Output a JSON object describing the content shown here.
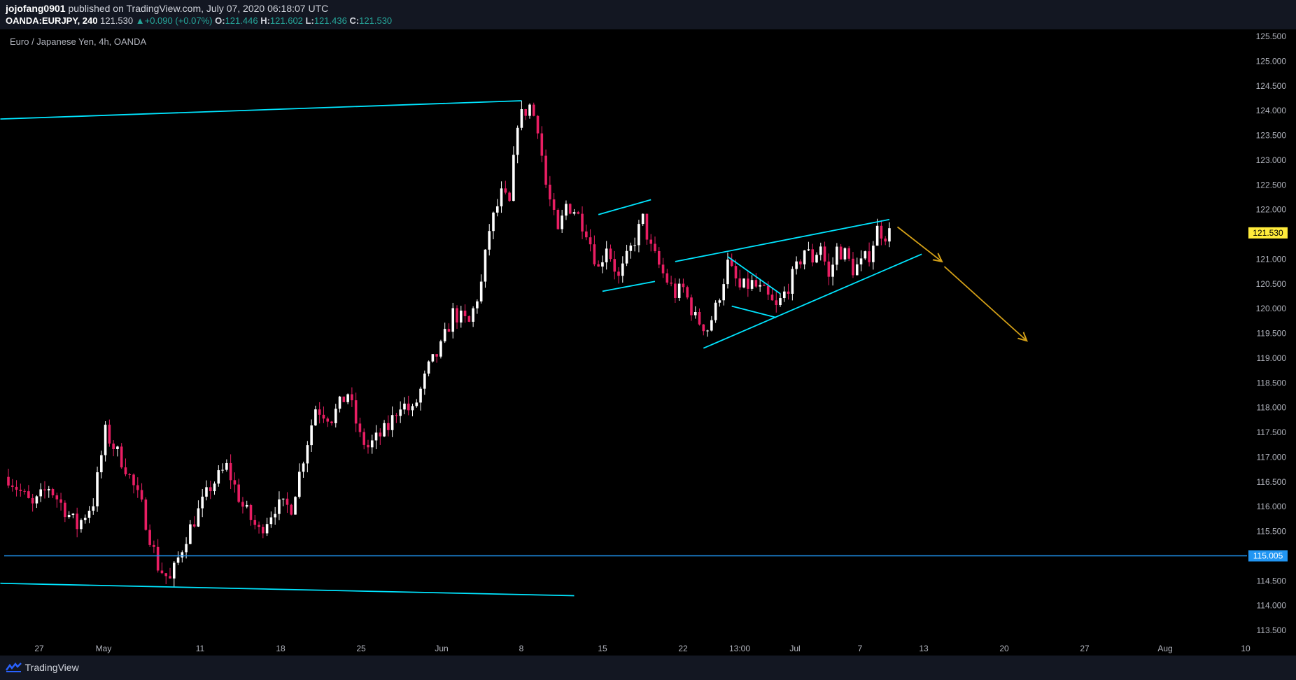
{
  "header": {
    "user": "jojofang0901",
    "published_text": "published on TradingView.com, July 07, 2020 06:18:07 UTC",
    "symbol": "OANDA:EURJPY, 240",
    "last": "121.530",
    "change": "+0.090 (+0.07%)",
    "o_label": "O:",
    "o_value": "121.446",
    "h_label": "H:",
    "h_value": "121.602",
    "l_label": "L:",
    "l_value": "121.436",
    "c_label": "C:",
    "c_value": "121.530"
  },
  "footer": {
    "brand": "TradingView"
  },
  "colors": {
    "background": "#000000",
    "up_candle": "#ffffff",
    "down_candle": "#e91e63",
    "trendline": "#00e5ff",
    "support_line": "#2196f3",
    "arrow": "#d4a017",
    "price_label_bg": "#ffeb3b",
    "support_label_bg": "#2196f3"
  },
  "chart_data": {
    "type": "candlestick",
    "title": "Euro / Japanese Yen, 4h, OANDA",
    "ylim": [
      113.5,
      125.6
    ],
    "y_ticks": [
      "125.500",
      "125.000",
      "124.500",
      "124.000",
      "123.500",
      "123.000",
      "122.500",
      "122.000",
      "121.500",
      "121.000",
      "120.500",
      "120.000",
      "119.500",
      "119.000",
      "118.500",
      "118.000",
      "117.500",
      "117.000",
      "116.500",
      "116.000",
      "115.500",
      "115.000",
      "114.500",
      "114.000",
      "113.500"
    ],
    "x_ticks": [
      "27",
      "May",
      "11",
      "18",
      "25",
      "Jun",
      "8",
      "15",
      "22",
      "13:00",
      "Jul",
      "7",
      "13",
      "20",
      "27",
      "Aug",
      "10"
    ],
    "current_price": "121.530",
    "support_price": "115.005",
    "price_path": [
      {
        "x": 0.0,
        "y": 116.6
      },
      {
        "x": 3.0,
        "y": 116.0
      },
      {
        "x": 5.0,
        "y": 116.4
      },
      {
        "x": 8.5,
        "y": 115.6
      },
      {
        "x": 10.5,
        "y": 116.1
      },
      {
        "x": 12.0,
        "y": 117.5
      },
      {
        "x": 14.5,
        "y": 116.8
      },
      {
        "x": 16.5,
        "y": 116.0
      },
      {
        "x": 18.5,
        "y": 114.8
      },
      {
        "x": 20.0,
        "y": 114.5
      },
      {
        "x": 22.0,
        "y": 115.4
      },
      {
        "x": 25.0,
        "y": 116.4
      },
      {
        "x": 27.0,
        "y": 116.8
      },
      {
        "x": 29.0,
        "y": 116.0
      },
      {
        "x": 31.0,
        "y": 115.5
      },
      {
        "x": 33.0,
        "y": 116.0
      },
      {
        "x": 35.0,
        "y": 116.0
      },
      {
        "x": 36.5,
        "y": 117.0
      },
      {
        "x": 38.0,
        "y": 118.0
      },
      {
        "x": 40.0,
        "y": 117.8
      },
      {
        "x": 42.0,
        "y": 118.3
      },
      {
        "x": 43.5,
        "y": 117.4
      },
      {
        "x": 44.5,
        "y": 117.2
      },
      {
        "x": 47.0,
        "y": 117.6
      },
      {
        "x": 48.5,
        "y": 118.1
      },
      {
        "x": 50.0,
        "y": 117.9
      },
      {
        "x": 52.0,
        "y": 118.8
      },
      {
        "x": 53.5,
        "y": 119.2
      },
      {
        "x": 55.0,
        "y": 119.9
      },
      {
        "x": 57.0,
        "y": 119.7
      },
      {
        "x": 58.5,
        "y": 120.5
      },
      {
        "x": 59.5,
        "y": 121.6
      },
      {
        "x": 61.0,
        "y": 122.3
      },
      {
        "x": 62.0,
        "y": 122.1
      },
      {
        "x": 63.0,
        "y": 123.8
      },
      {
        "x": 64.5,
        "y": 124.1
      },
      {
        "x": 65.5,
        "y": 123.7
      },
      {
        "x": 66.5,
        "y": 122.5
      },
      {
        "x": 68.0,
        "y": 121.5
      },
      {
        "x": 69.0,
        "y": 122.1
      },
      {
        "x": 70.0,
        "y": 122.0
      },
      {
        "x": 71.5,
        "y": 121.6
      },
      {
        "x": 73.0,
        "y": 120.8
      },
      {
        "x": 74.0,
        "y": 121.3
      },
      {
        "x": 75.5,
        "y": 120.6
      },
      {
        "x": 77.0,
        "y": 121.2
      },
      {
        "x": 78.5,
        "y": 121.8
      },
      {
        "x": 79.5,
        "y": 121.2
      },
      {
        "x": 81.0,
        "y": 120.7
      },
      {
        "x": 82.5,
        "y": 120.3
      },
      {
        "x": 83.5,
        "y": 120.4
      },
      {
        "x": 85.0,
        "y": 119.8
      },
      {
        "x": 86.5,
        "y": 119.6
      },
      {
        "x": 87.5,
        "y": 120.0
      },
      {
        "x": 89.0,
        "y": 120.9
      },
      {
        "x": 90.5,
        "y": 120.4
      },
      {
        "x": 92.0,
        "y": 120.5
      },
      {
        "x": 93.5,
        "y": 120.3
      },
      {
        "x": 95.0,
        "y": 120.0
      },
      {
        "x": 96.0,
        "y": 120.3
      },
      {
        "x": 97.5,
        "y": 120.8
      },
      {
        "x": 98.5,
        "y": 121.2
      },
      {
        "x": 99.5,
        "y": 121.0
      },
      {
        "x": 100.5,
        "y": 121.3
      },
      {
        "x": 101.5,
        "y": 120.6
      },
      {
        "x": 102.5,
        "y": 121.2
      },
      {
        "x": 103.5,
        "y": 121.1
      },
      {
        "x": 104.5,
        "y": 120.8
      },
      {
        "x": 105.5,
        "y": 120.9
      },
      {
        "x": 106.5,
        "y": 121.1
      },
      {
        "x": 107.5,
        "y": 121.6
      },
      {
        "x": 108.5,
        "y": 121.5
      },
      {
        "x": 109.0,
        "y": 121.53
      }
    ],
    "drawings": [
      {
        "type": "trendline",
        "from": {
          "x": -1,
          "y": 123.83
        },
        "to": {
          "x": 63.5,
          "y": 124.2
        }
      },
      {
        "type": "trendline",
        "from": {
          "x": -1,
          "y": 114.45
        },
        "to": {
          "x": 70.0,
          "y": 114.2
        }
      },
      {
        "type": "horizontal",
        "y": 115.005
      },
      {
        "type": "trendline",
        "from": {
          "x": 73.0,
          "y": 121.9
        },
        "to": {
          "x": 79.5,
          "y": 122.2
        }
      },
      {
        "type": "trendline",
        "from": {
          "x": 73.5,
          "y": 120.35
        },
        "to": {
          "x": 80.0,
          "y": 120.55
        }
      },
      {
        "type": "trendline",
        "from": {
          "x": 82.5,
          "y": 120.95
        },
        "to": {
          "x": 109.0,
          "y": 121.8
        }
      },
      {
        "type": "trendline",
        "from": {
          "x": 86.0,
          "y": 119.2
        },
        "to": {
          "x": 113.0,
          "y": 121.1
        }
      },
      {
        "type": "trendline",
        "from": {
          "x": 89.0,
          "y": 121.05
        },
        "to": {
          "x": 95.5,
          "y": 120.3
        }
      },
      {
        "type": "trendline",
        "from": {
          "x": 89.5,
          "y": 120.05
        },
        "to": {
          "x": 95.0,
          "y": 119.82
        }
      },
      {
        "type": "arrow",
        "from": {
          "x": 110.0,
          "y": 121.65
        },
        "to": {
          "x": 115.5,
          "y": 120.95
        }
      },
      {
        "type": "arrow",
        "from": {
          "x": 115.8,
          "y": 120.85
        },
        "to": {
          "x": 126.0,
          "y": 119.35
        }
      }
    ]
  }
}
